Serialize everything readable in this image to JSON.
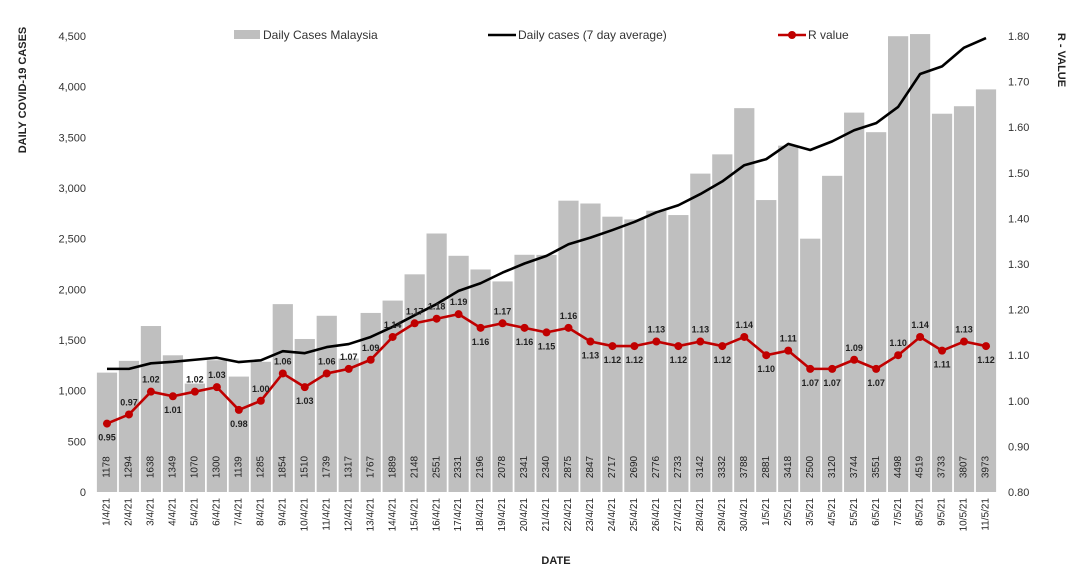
{
  "chart_data": {
    "type": "bar",
    "xlabel": "DATE",
    "ylabel_left": "DAILY COVID-19 CASES",
    "ylabel_right": "R - VALUE",
    "ylim_left": [
      0,
      4500
    ],
    "ylim_right": [
      0.8,
      1.8
    ],
    "left_ticks": [
      "0",
      "500",
      "1,000",
      "1,500",
      "2,000",
      "2,500",
      "3,000",
      "3,500",
      "4,000",
      "4,500"
    ],
    "right_ticks": [
      "0.80",
      "0.90",
      "1.00",
      "1.10",
      "1.20",
      "1.30",
      "1.40",
      "1.50",
      "1.60",
      "1.70",
      "1.80"
    ],
    "grid": false,
    "legend_position": "top",
    "categories": [
      "1/4/21",
      "2/4/21",
      "3/4/21",
      "4/4/21",
      "5/4/21",
      "6/4/21",
      "7/4/21",
      "8/4/21",
      "9/4/21",
      "10/4/21",
      "11/4/21",
      "12/4/21",
      "13/4/21",
      "14/4/21",
      "15/4/21",
      "16/4/21",
      "17/4/21",
      "18/4/21",
      "19/4/21",
      "20/4/21",
      "21/4/21",
      "22/4/21",
      "23/4/21",
      "24/4/21",
      "25/4/21",
      "26/4/21",
      "27/4/21",
      "28/4/21",
      "29/4/21",
      "30/4/21",
      "1/5/21",
      "2/5/21",
      "3/5/21",
      "4/5/21",
      "5/5/21",
      "6/5/21",
      "7/5/21",
      "8/5/21",
      "9/5/21",
      "10/5/21",
      "11/5/21"
    ],
    "series": [
      {
        "name": "Daily Cases Malaysia",
        "type": "bar",
        "axis": "left",
        "color": "#bfbfbf",
        "values": [
          1178,
          1294,
          1638,
          1349,
          1070,
          1300,
          1139,
          1285,
          1854,
          1510,
          1739,
          1317,
          1767,
          1889,
          2148,
          2551,
          2331,
          2196,
          2078,
          2341,
          2340,
          2875,
          2847,
          2717,
          2690,
          2776,
          2733,
          3142,
          3332,
          3788,
          2881,
          3418,
          2500,
          3120,
          3744,
          3551,
          4498,
          4519,
          3733,
          3807,
          3973
        ],
        "labels": [
          "1178",
          "1294",
          "1638",
          "1349",
          "1070",
          "1300",
          "1139",
          "1285",
          "1854",
          "1510",
          "1739",
          "1317",
          "1767",
          "1889",
          "2148",
          "2551",
          "2331",
          "2196",
          "2078",
          "2341",
          "2340",
          "2875",
          "2847",
          "2717",
          "2690",
          "2776",
          "2733",
          "3142",
          "3332",
          "3788",
          "2881",
          "3418",
          "2500",
          "3120",
          "3744",
          "3551",
          "4498",
          "4519",
          "3733",
          "3807",
          "3973"
        ]
      },
      {
        "name": "Daily cases (7 day average)",
        "type": "line",
        "axis": "left",
        "color": "#000000",
        "values": [
          1215,
          1215,
          1270,
          1285,
          1305,
          1325,
          1282,
          1300,
          1390,
          1370,
          1430,
          1460,
          1530,
          1630,
          1745,
          1855,
          1985,
          2060,
          2165,
          2255,
          2330,
          2445,
          2510,
          2585,
          2665,
          2760,
          2830,
          2940,
          3065,
          3225,
          3285,
          3435,
          3375,
          3460,
          3570,
          3640,
          3800,
          4125,
          4200,
          4385,
          4480
        ]
      },
      {
        "name": "R value",
        "type": "line",
        "axis": "right",
        "color": "#c00000",
        "values": [
          0.95,
          0.97,
          1.02,
          1.01,
          1.02,
          1.03,
          0.98,
          1.0,
          1.06,
          1.03,
          1.06,
          1.07,
          1.09,
          1.14,
          1.17,
          1.18,
          1.19,
          1.16,
          1.17,
          1.16,
          1.15,
          1.16,
          1.13,
          1.12,
          1.12,
          1.13,
          1.12,
          1.13,
          1.12,
          1.14,
          1.1,
          1.11,
          1.07,
          1.07,
          1.09,
          1.07,
          1.1,
          1.14,
          1.11,
          1.13,
          1.12
        ],
        "labels": [
          "0.95",
          "0.97",
          "1.02",
          "1.01",
          "1.02",
          "1.03",
          "0.98",
          "1.00",
          "1.06",
          "1.03",
          "1.06",
          "1.07",
          "1.09",
          "1.14",
          "1.17",
          "1.18",
          "1.19",
          "1.16",
          "1.17",
          "1.16",
          "1.15",
          "1.16",
          "1.13",
          "1.12",
          "1.12",
          "1.13",
          "1.12",
          "1.13",
          "1.12",
          "1.14",
          "1.10",
          "1.11",
          "1.07",
          "1.07",
          "1.09",
          "1.07",
          "1.10",
          "1.14",
          "1.11",
          "1.13",
          "1.12"
        ]
      }
    ]
  }
}
